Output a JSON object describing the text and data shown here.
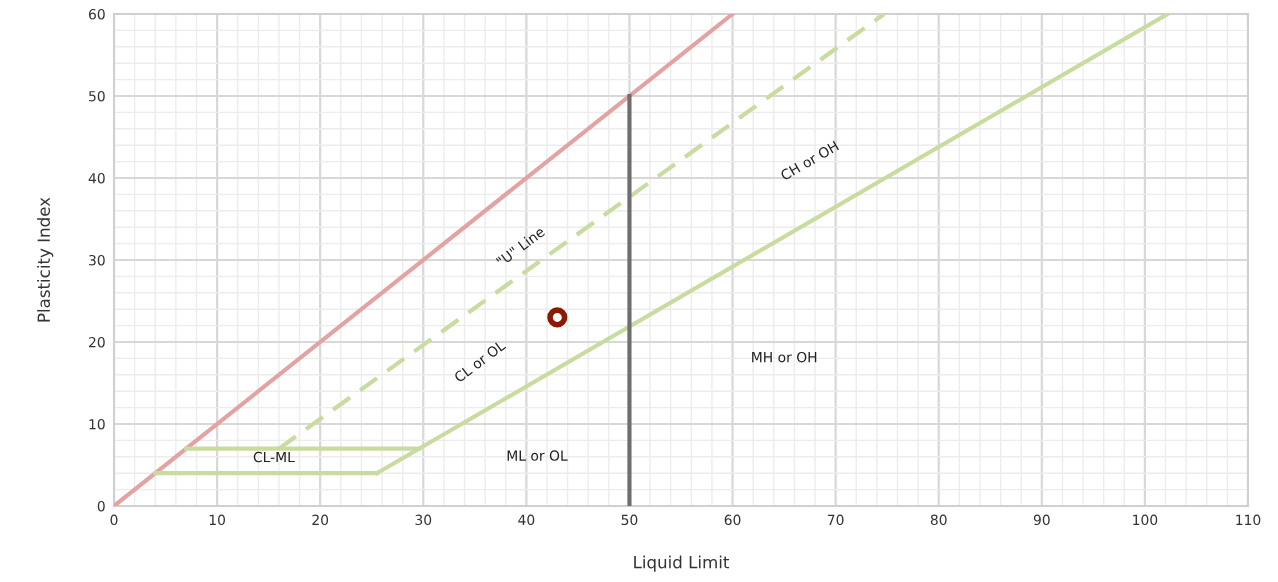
{
  "chart_data": {
    "type": "line",
    "xlabel": "Liquid Limit",
    "ylabel": "Plasticity Index",
    "xlim": [
      0,
      110
    ],
    "xticks": [
      0,
      10,
      20,
      30,
      40,
      50,
      60,
      70,
      80,
      90,
      100,
      110
    ],
    "ylim": [
      0,
      60
    ],
    "yticks": [
      0,
      10,
      20,
      30,
      40,
      50,
      60
    ],
    "grid": true,
    "series": [
      {
        "color": "#e3a3a3",
        "x": [
          0,
          60
        ],
        "values": [
          0,
          60
        ],
        "line_style": "solid"
      },
      {
        "color": "#c8dca0",
        "x": [
          16,
          74.7
        ],
        "values": [
          7,
          60
        ],
        "line_style": "dashed"
      },
      {
        "color": "#c8dca0",
        "x": [
          25.5,
          102.2
        ],
        "values": [
          4,
          60
        ],
        "line_style": "solid"
      },
      {
        "color": "#c8dca0",
        "x": [
          4,
          25.5
        ],
        "values": [
          4,
          4
        ],
        "line_style": "solid"
      },
      {
        "color": "#c8dca0",
        "x": [
          7,
          29.6
        ],
        "values": [
          7,
          7
        ],
        "line_style": "solid"
      },
      {
        "color": "#6e6e6e",
        "x": [
          50,
          50
        ],
        "values": [
          0,
          50
        ],
        "line_style": "solid"
      },
      {
        "type": "scatter",
        "color": "#8b1a00",
        "x": [
          43
        ],
        "values": [
          23
        ]
      }
    ],
    "annotations": [
      "\"U\" Line",
      "CH or OH",
      "CL or OL",
      "MH or OH",
      "ML or OL",
      "CL-ML"
    ]
  }
}
